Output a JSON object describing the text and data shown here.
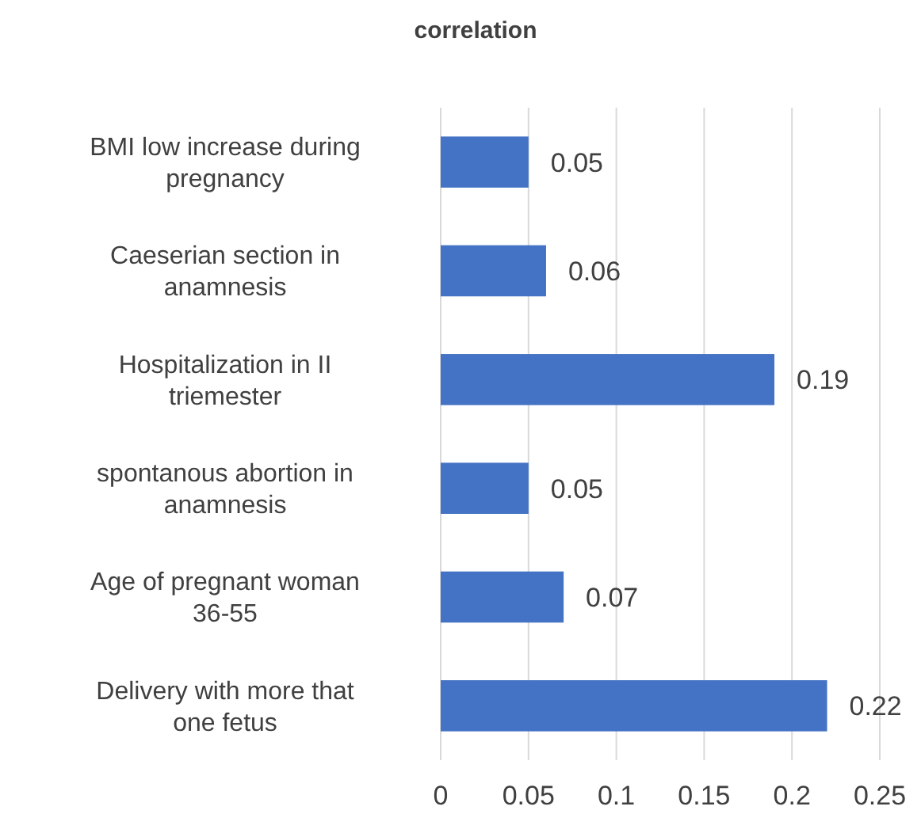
{
  "chart_data": {
    "type": "bar",
    "orientation": "horizontal",
    "title": "correlation",
    "categories": [
      "BMI low increase during pregnancy",
      "Caeserian section in anamnesis",
      "Hospitalization in II triemester",
      "spontanous abortion in anamnesis",
      "Age of pregnant woman 36-55",
      "Delivery with more that one fetus"
    ],
    "values": [
      0.05,
      0.06,
      0.19,
      0.05,
      0.07,
      0.22
    ],
    "color": "#4472c4",
    "xlim": [
      0,
      0.25
    ],
    "xticks": [
      0,
      0.05,
      0.1,
      0.15,
      0.2,
      0.25
    ],
    "grid": "x",
    "data_labels": true
  }
}
